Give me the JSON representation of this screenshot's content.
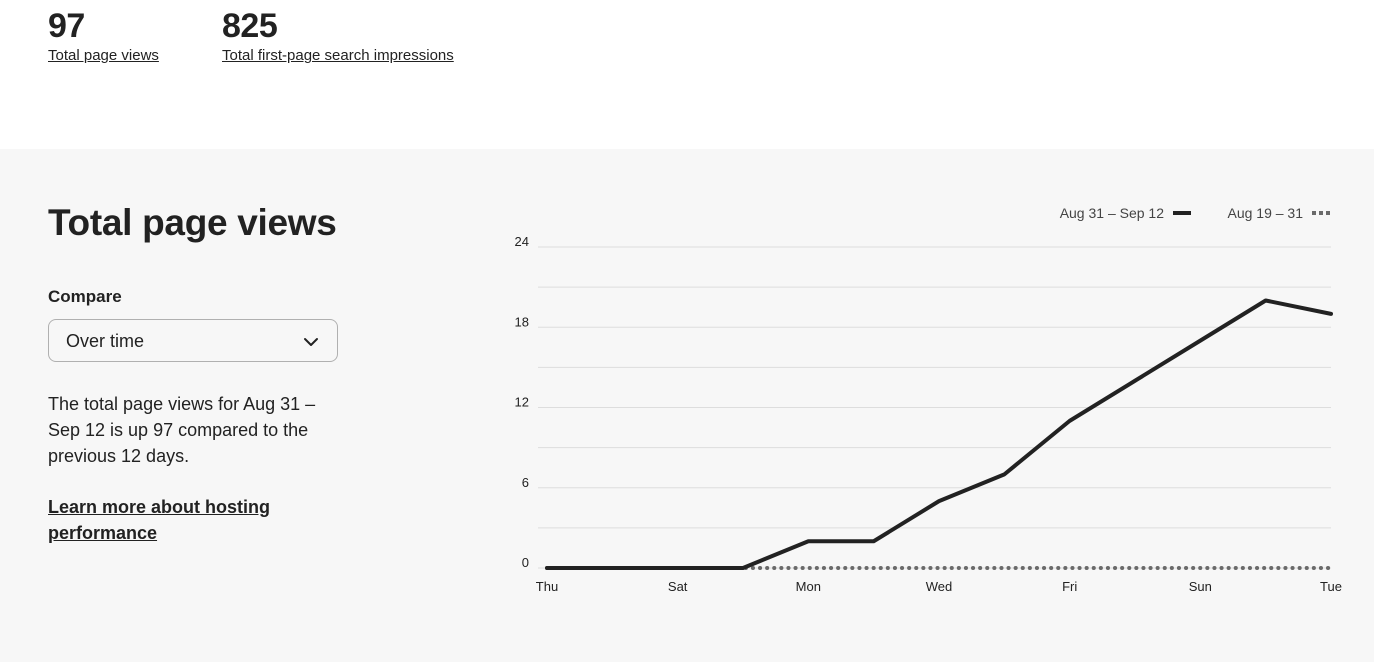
{
  "stats": {
    "page_views": {
      "value": "97",
      "label": "Total page views"
    },
    "impressions": {
      "value": "825",
      "label": "Total first-page search impressions"
    }
  },
  "panel": {
    "title": "Total page views",
    "compare_label": "Compare",
    "compare_value": "Over time",
    "description": "The total page views for Aug 31 – Sep 12 is up 97 compared to the previous 12 days.",
    "learn_more": "Learn more about hosting performance"
  },
  "chart_data": {
    "type": "line",
    "legend_placement": "top-right",
    "grid": true,
    "ylim": [
      0,
      24
    ],
    "y_ticks": [
      "24",
      "18",
      "12",
      "6",
      "0"
    ],
    "x_tick_labels": [
      "Thu",
      "Sat",
      "Mon",
      "Wed",
      "Fri",
      "Sun",
      "Tue"
    ],
    "x": [
      0,
      1,
      2,
      3,
      4,
      5,
      6,
      7,
      8,
      9,
      10,
      11,
      12
    ],
    "series": [
      {
        "name": "Aug 31 – Sep 12",
        "style": "solid",
        "color": "#222222",
        "values": [
          0,
          0,
          0,
          0,
          2,
          2,
          5,
          7,
          11,
          14,
          17,
          20,
          19
        ]
      },
      {
        "name": "Aug 19 – 31",
        "style": "dotted",
        "color": "#6a6a6a",
        "values": [
          0,
          0,
          0,
          0,
          0,
          0,
          0,
          0,
          0,
          0,
          0,
          0,
          0
        ]
      }
    ]
  }
}
